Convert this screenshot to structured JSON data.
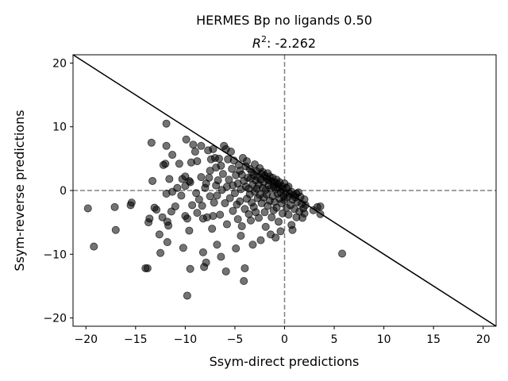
{
  "chart_data": {
    "type": "scatter",
    "title": "HERMES Bp no ligands 0.50",
    "subtitle_symbol": "R",
    "subtitle_exponent": "2",
    "subtitle_value": ": -2.262",
    "xlabel": "Ssym-direct predictions",
    "ylabel": "Ssym-reverse predictions",
    "xlim": [
      -21.3,
      21.3
    ],
    "ylim": [
      -21.3,
      21.3
    ],
    "xticks": [
      -20,
      -15,
      -10,
      -5,
      0,
      5,
      10,
      15,
      20
    ],
    "yticks": [
      -20,
      -10,
      0,
      10,
      20
    ],
    "reference_line": {
      "slope": -1,
      "intercept": 0,
      "color": "#000000"
    },
    "zero_lines": {
      "x": 0,
      "y": 0,
      "style": "dashed",
      "color": "#808080"
    },
    "marker_color": "#000000",
    "marker_opacity": 0.55,
    "grid": false,
    "points": [
      [
        -19.8,
        -2.8
      ],
      [
        -19.2,
        -8.8
      ],
      [
        -17.1,
        -2.6
      ],
      [
        -17.0,
        -6.2
      ],
      [
        -15.5,
        -2.3
      ],
      [
        -15.4,
        -1.9
      ],
      [
        -14.0,
        -12.2
      ],
      [
        -13.8,
        -12.2
      ],
      [
        -13.7,
        -5.0
      ],
      [
        -13.6,
        -4.4
      ],
      [
        -13.4,
        7.5
      ],
      [
        -13.3,
        1.5
      ],
      [
        -13.1,
        -2.7
      ],
      [
        -12.9,
        -3.0
      ],
      [
        -12.6,
        -6.9
      ],
      [
        -12.5,
        -9.8
      ],
      [
        -12.3,
        -4.2
      ],
      [
        -12.2,
        4.0
      ],
      [
        -12.0,
        4.2
      ],
      [
        -11.9,
        10.5
      ],
      [
        -11.9,
        7.0
      ],
      [
        -11.9,
        -0.5
      ],
      [
        -11.8,
        -4.9
      ],
      [
        -11.8,
        -8.1
      ],
      [
        -11.7,
        -5.5
      ],
      [
        -11.6,
        1.8
      ],
      [
        -11.4,
        -3.3
      ],
      [
        -11.3,
        5.6
      ],
      [
        -11.3,
        -0.2
      ],
      [
        -11.0,
        -2.5
      ],
      [
        -10.8,
        0.4
      ],
      [
        -10.6,
        4.2
      ],
      [
        -10.4,
        -0.8
      ],
      [
        -10.3,
        1.8
      ],
      [
        -10.2,
        -9.0
      ],
      [
        -10.0,
        -4.0
      ],
      [
        -10.0,
        0.7
      ],
      [
        -10.0,
        2.2
      ],
      [
        -9.9,
        8.0
      ],
      [
        -9.8,
        -16.5
      ],
      [
        -9.8,
        -4.4
      ],
      [
        -9.6,
        1.5
      ],
      [
        -9.6,
        -6.3
      ],
      [
        -9.5,
        -12.3
      ],
      [
        -9.5,
        1.3
      ],
      [
        -9.4,
        4.4
      ],
      [
        -9.3,
        -2.3
      ],
      [
        -9.2,
        7.2
      ],
      [
        -9.0,
        6.1
      ],
      [
        -8.9,
        -0.4
      ],
      [
        -8.8,
        4.6
      ],
      [
        -8.8,
        -3.5
      ],
      [
        -8.6,
        -1.4
      ],
      [
        -8.4,
        7.0
      ],
      [
        -8.4,
        2.1
      ],
      [
        -8.3,
        -2.4
      ],
      [
        -8.2,
        -4.4
      ],
      [
        -8.2,
        -9.7
      ],
      [
        -8.1,
        -12.0
      ],
      [
        -8.0,
        0.4
      ],
      [
        -7.9,
        -11.3
      ],
      [
        -7.9,
        1.1
      ],
      [
        -7.8,
        -4.2
      ],
      [
        -7.7,
        6.3
      ],
      [
        -7.6,
        2.0
      ],
      [
        -7.5,
        3.1
      ],
      [
        -7.5,
        -0.9
      ],
      [
        -7.4,
        4.9
      ],
      [
        -7.3,
        -6.0
      ],
      [
        -7.2,
        6.5
      ],
      [
        -7.2,
        -4.0
      ],
      [
        -7.1,
        -1.9
      ],
      [
        -7.0,
        5.1
      ],
      [
        -6.9,
        0.8
      ],
      [
        -6.9,
        3.6
      ],
      [
        -6.8,
        -8.5
      ],
      [
        -6.8,
        -0.8
      ],
      [
        -6.7,
        1.6
      ],
      [
        -6.6,
        5.0
      ],
      [
        -6.5,
        -3.8
      ],
      [
        -6.4,
        -10.4
      ],
      [
        -6.4,
        3.9
      ],
      [
        -6.3,
        0.1
      ],
      [
        -6.2,
        2.6
      ],
      [
        -6.1,
        7.0
      ],
      [
        -6.0,
        -2.0
      ],
      [
        -5.9,
        -12.7
      ],
      [
        -5.9,
        6.5
      ],
      [
        -5.8,
        -5.3
      ],
      [
        -5.8,
        0.6
      ],
      [
        -5.7,
        4.9
      ],
      [
        -5.6,
        1.7
      ],
      [
        -5.5,
        -1.2
      ],
      [
        -5.4,
        6.1
      ],
      [
        -5.3,
        3.4
      ],
      [
        -5.2,
        -3.2
      ],
      [
        -5.2,
        0.8
      ],
      [
        -5.1,
        4.7
      ],
      [
        -5.0,
        -0.4
      ],
      [
        -4.9,
        -9.1
      ],
      [
        -4.9,
        2.4
      ],
      [
        -4.8,
        -2.2
      ],
      [
        -4.7,
        -4.5
      ],
      [
        -4.7,
        1.1
      ],
      [
        -4.6,
        4.0
      ],
      [
        -4.5,
        -1.7
      ],
      [
        -4.5,
        3.1
      ],
      [
        -4.4,
        -7.1
      ],
      [
        -4.4,
        0.2
      ],
      [
        -4.3,
        2.5
      ],
      [
        -4.3,
        -5.6
      ],
      [
        -4.2,
        5.1
      ],
      [
        -4.1,
        -14.2
      ],
      [
        -4.1,
        1.5
      ],
      [
        -4.0,
        -12.2
      ],
      [
        -4.0,
        -2.9
      ],
      [
        -3.9,
        3.8
      ],
      [
        -3.9,
        0.6
      ],
      [
        -3.8,
        -1.3
      ],
      [
        -3.8,
        4.6
      ],
      [
        -3.7,
        2.0
      ],
      [
        -3.6,
        -3.7
      ],
      [
        -3.6,
        0.3
      ],
      [
        -3.5,
        3.4
      ],
      [
        -3.5,
        -0.6
      ],
      [
        -3.4,
        1.9
      ],
      [
        -3.4,
        -4.7
      ],
      [
        -3.3,
        2.9
      ],
      [
        -3.3,
        -1.9
      ],
      [
        -3.2,
        0.9
      ],
      [
        -3.2,
        -8.5
      ],
      [
        -3.1,
        2.4
      ],
      [
        -3.1,
        -2.6
      ],
      [
        -3.0,
        4.1
      ],
      [
        -3.0,
        -0.2
      ],
      [
        -2.9,
        1.6
      ],
      [
        -2.9,
        -3.4
      ],
      [
        -2.8,
        0.3
      ],
      [
        -2.8,
        3.0
      ],
      [
        -2.7,
        -1.2
      ],
      [
        -2.7,
        2.1
      ],
      [
        -2.6,
        -4.3
      ],
      [
        -2.6,
        0.9
      ],
      [
        -2.5,
        3.5
      ],
      [
        -2.5,
        -0.7
      ],
      [
        -2.4,
        1.7
      ],
      [
        -2.4,
        -7.8
      ],
      [
        -2.3,
        2.6
      ],
      [
        -2.3,
        -2.0
      ],
      [
        -2.2,
        0.4
      ],
      [
        -2.2,
        2.9
      ],
      [
        -2.1,
        -1.1
      ],
      [
        -2.1,
        1.3
      ],
      [
        -2.0,
        -3.4
      ],
      [
        -2.0,
        2.3
      ],
      [
        -1.9,
        0.1
      ],
      [
        -1.9,
        -5.7
      ],
      [
        -1.8,
        1.9
      ],
      [
        -1.8,
        -0.6
      ],
      [
        -1.7,
        2.7
      ],
      [
        -1.7,
        -2.4
      ],
      [
        -1.6,
        0.8
      ],
      [
        -1.6,
        1.6
      ],
      [
        -1.5,
        -1.6
      ],
      [
        -1.5,
        2.2
      ],
      [
        -1.4,
        -6.9
      ],
      [
        -1.4,
        0.3
      ],
      [
        -1.3,
        -4.2
      ],
      [
        -1.3,
        1.4
      ],
      [
        -1.2,
        -0.9
      ],
      [
        -1.2,
        2.0
      ],
      [
        -1.1,
        -3.1
      ],
      [
        -1.1,
        0.6
      ],
      [
        -1.0,
        1.3
      ],
      [
        -1.0,
        -1.8
      ],
      [
        -0.9,
        -7.4
      ],
      [
        -0.9,
        0.2
      ],
      [
        -0.8,
        1.7
      ],
      [
        -0.8,
        -2.7
      ],
      [
        -0.7,
        -0.5
      ],
      [
        -0.7,
        1.0
      ],
      [
        -0.6,
        -4.9
      ],
      [
        -0.6,
        0.5
      ],
      [
        -0.5,
        1.3
      ],
      [
        -0.5,
        -1.3
      ],
      [
        -0.4,
        -6.4
      ],
      [
        -0.4,
        -0.3
      ],
      [
        -0.3,
        0.7
      ],
      [
        -0.3,
        -2.0
      ],
      [
        -0.2,
        -3.6
      ],
      [
        -0.2,
        0.2
      ],
      [
        -0.1,
        -0.9
      ],
      [
        0.0,
        1.1
      ],
      [
        0.0,
        -1.5
      ],
      [
        0.1,
        -0.4
      ],
      [
        0.2,
        -2.7
      ],
      [
        0.2,
        0.4
      ],
      [
        0.3,
        -1.1
      ],
      [
        0.4,
        -3.8
      ],
      [
        0.4,
        0.6
      ],
      [
        0.5,
        -0.5
      ],
      [
        0.6,
        -2.3
      ],
      [
        0.7,
        -5.4
      ],
      [
        0.7,
        -0.2
      ],
      [
        0.8,
        -1.4
      ],
      [
        0.8,
        -6.2
      ],
      [
        0.9,
        -0.7
      ],
      [
        1.0,
        -2.9
      ],
      [
        1.1,
        -1.1
      ],
      [
        1.2,
        -0.5
      ],
      [
        1.2,
        -4.2
      ],
      [
        1.3,
        -1.8
      ],
      [
        1.4,
        -0.3
      ],
      [
        1.5,
        -3.3
      ],
      [
        1.6,
        -1.0
      ],
      [
        1.7,
        -2.1
      ],
      [
        1.8,
        -4.3
      ],
      [
        1.9,
        -2.8
      ],
      [
        2.0,
        -1.4
      ],
      [
        2.0,
        -3.6
      ],
      [
        2.1,
        -2.3
      ],
      [
        2.9,
        -3.1
      ],
      [
        3.3,
        -2.6
      ],
      [
        3.6,
        -3.7
      ],
      [
        3.6,
        -2.5
      ],
      [
        5.8,
        -9.9
      ]
    ]
  }
}
